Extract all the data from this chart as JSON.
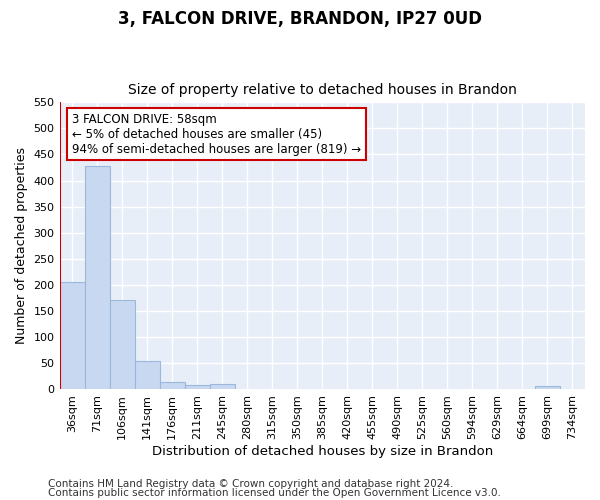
{
  "title": "3, FALCON DRIVE, BRANDON, IP27 0UD",
  "subtitle": "Size of property relative to detached houses in Brandon",
  "xlabel": "Distribution of detached houses by size in Brandon",
  "ylabel": "Number of detached properties",
  "categories": [
    "36sqm",
    "71sqm",
    "106sqm",
    "141sqm",
    "176sqm",
    "211sqm",
    "245sqm",
    "280sqm",
    "315sqm",
    "350sqm",
    "385sqm",
    "420sqm",
    "455sqm",
    "490sqm",
    "525sqm",
    "560sqm",
    "594sqm",
    "629sqm",
    "664sqm",
    "699sqm",
    "734sqm"
  ],
  "values": [
    205,
    428,
    170,
    53,
    13,
    7,
    9,
    0,
    0,
    0,
    0,
    0,
    0,
    0,
    0,
    0,
    0,
    0,
    0,
    5,
    0
  ],
  "bar_color": "#c8d8f0",
  "bar_edge_color": "#9ab8dc",
  "ylim": [
    0,
    550
  ],
  "yticks": [
    0,
    50,
    100,
    150,
    200,
    250,
    300,
    350,
    400,
    450,
    500,
    550
  ],
  "property_sqm": 58,
  "pct_smaller": 5,
  "n_smaller": 45,
  "pct_larger_semi": 94,
  "n_larger_semi": 819,
  "annotation_box_color": "#ffffff",
  "annotation_box_edge": "#cc0000",
  "red_line_color": "#cc0000",
  "footer1": "Contains HM Land Registry data © Crown copyright and database right 2024.",
  "footer2": "Contains public sector information licensed under the Open Government Licence v3.0.",
  "bg_color": "#ffffff",
  "plot_bg_color": "#e8eef8",
  "grid_color": "#ffffff",
  "title_fontsize": 12,
  "subtitle_fontsize": 10,
  "tick_fontsize": 8,
  "ylabel_fontsize": 9,
  "xlabel_fontsize": 9.5,
  "footer_fontsize": 7.5,
  "annotation_fontsize": 8.5
}
